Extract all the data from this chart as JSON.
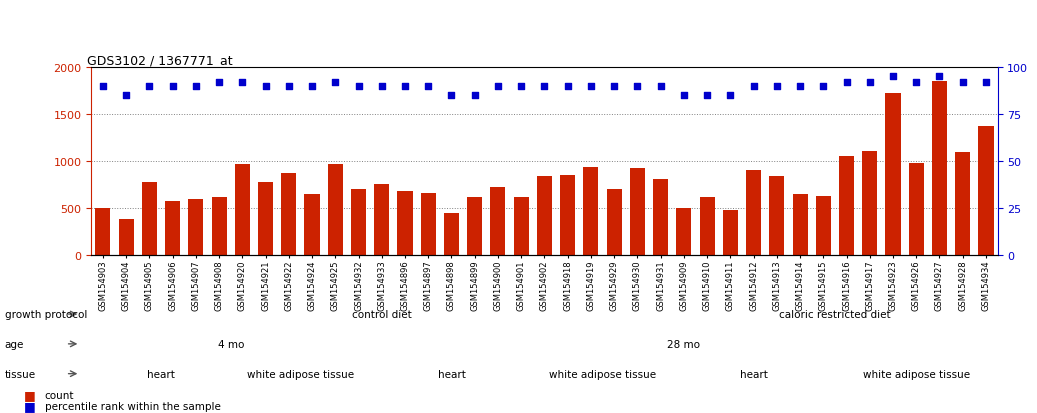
{
  "title": "GDS3102 / 1367771_at",
  "samples": [
    "GSM154903",
    "GSM154904",
    "GSM154905",
    "GSM154906",
    "GSM154907",
    "GSM154908",
    "GSM154920",
    "GSM154921",
    "GSM154922",
    "GSM154924",
    "GSM154925",
    "GSM154932",
    "GSM154933",
    "GSM154896",
    "GSM154897",
    "GSM154898",
    "GSM154899",
    "GSM154900",
    "GSM154901",
    "GSM154902",
    "GSM154918",
    "GSM154919",
    "GSM154929",
    "GSM154930",
    "GSM154931",
    "GSM154909",
    "GSM154910",
    "GSM154911",
    "GSM154912",
    "GSM154913",
    "GSM154914",
    "GSM154915",
    "GSM154916",
    "GSM154917",
    "GSM154923",
    "GSM154926",
    "GSM154927",
    "GSM154928",
    "GSM154934"
  ],
  "counts": [
    500,
    390,
    780,
    580,
    600,
    620,
    970,
    780,
    870,
    650,
    970,
    700,
    760,
    680,
    660,
    450,
    620,
    730,
    620,
    840,
    850,
    940,
    700,
    930,
    810,
    500,
    620,
    480,
    900,
    845,
    650,
    630,
    1050,
    1110,
    1720,
    980,
    1850,
    1095,
    1370
  ],
  "percentile_ranks": [
    90,
    85,
    90,
    90,
    90,
    92,
    92,
    90,
    90,
    90,
    92,
    90,
    90,
    90,
    90,
    85,
    85,
    90,
    90,
    90,
    90,
    90,
    90,
    90,
    90,
    85,
    85,
    85,
    90,
    90,
    90,
    90,
    92,
    92,
    95,
    92,
    95,
    92,
    92
  ],
  "bar_color": "#cc2200",
  "dot_color": "#0000cc",
  "ylim_left": [
    0,
    2000
  ],
  "ylim_right": [
    0,
    100
  ],
  "yticks_left": [
    0,
    500,
    1000,
    1500,
    2000
  ],
  "yticks_right": [
    0,
    25,
    50,
    75,
    100
  ],
  "growth_protocol_segments": [
    {
      "label": "control diet",
      "start": 0,
      "end": 25,
      "color": "#aaddaa"
    },
    {
      "label": "caloric restricted diet",
      "start": 25,
      "end": 39,
      "color": "#77bb77"
    }
  ],
  "age_segments": [
    {
      "label": "4 mo",
      "start": 0,
      "end": 12,
      "color": "#bbbbee"
    },
    {
      "label": "28 mo",
      "start": 12,
      "end": 39,
      "color": "#8888cc"
    }
  ],
  "tissue_segments": [
    {
      "label": "heart",
      "start": 0,
      "end": 6,
      "color": "#f4aaaa"
    },
    {
      "label": "white adipose tissue",
      "start": 6,
      "end": 12,
      "color": "#e08888"
    },
    {
      "label": "heart",
      "start": 12,
      "end": 19,
      "color": "#f4aaaa"
    },
    {
      "label": "white adipose tissue",
      "start": 19,
      "end": 25,
      "color": "#e08888"
    },
    {
      "label": "heart",
      "start": 25,
      "end": 32,
      "color": "#f4aaaa"
    },
    {
      "label": "white adipose tissue",
      "start": 32,
      "end": 39,
      "color": "#e08888"
    }
  ],
  "legend_items": [
    {
      "label": "count",
      "color": "#cc2200"
    },
    {
      "label": "percentile rank within the sample",
      "color": "#0000cc"
    }
  ],
  "row_labels": [
    "growth protocol",
    "age",
    "tissue"
  ],
  "annot_bg": "#e8e8e8"
}
